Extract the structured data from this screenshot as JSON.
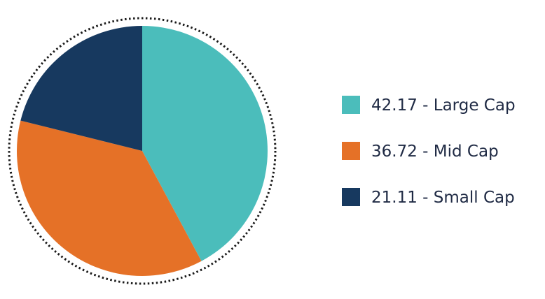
{
  "chart_data": {
    "type": "pie",
    "title": "",
    "categories": [
      "Large Cap",
      "Mid Cap",
      "Small Cap"
    ],
    "values": [
      42.17,
      36.72,
      21.11
    ],
    "labels": [
      "42.17 - Large Cap",
      "36.72 - Mid Cap",
      "21.11 - Small Cap"
    ],
    "colors": [
      "#4bbdbb",
      "#e57127",
      "#17395f"
    ],
    "start_angle": "12 o'clock",
    "direction": "clockwise",
    "legend_position": "right",
    "outline": "dotted circle"
  }
}
